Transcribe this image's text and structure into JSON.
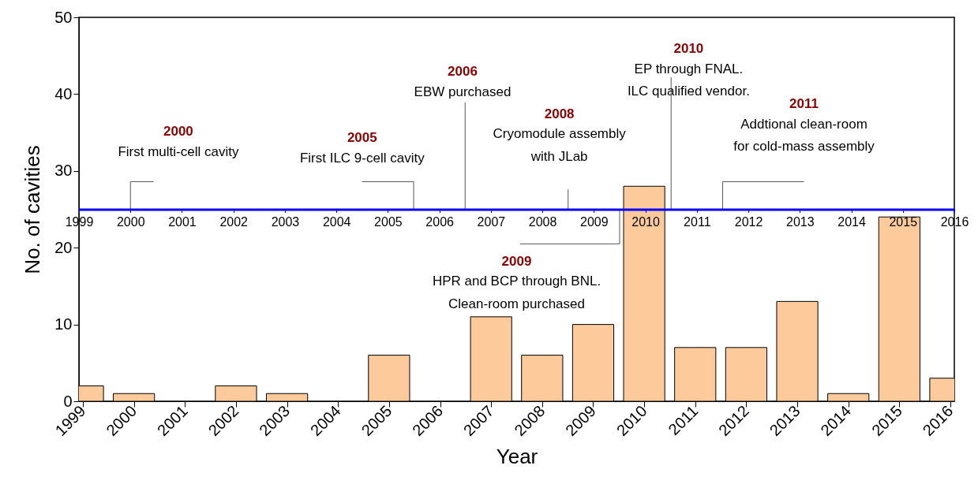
{
  "chart_data": {
    "type": "bar",
    "xlabel": "Year",
    "ylabel": "No. of cavities",
    "x": [
      1999,
      2000,
      2001,
      2002,
      2003,
      2004,
      2005,
      2006,
      2007,
      2008,
      2009,
      2010,
      2011,
      2012,
      2013,
      2014,
      2015,
      2016
    ],
    "values": [
      2,
      1,
      0,
      2,
      1,
      0,
      6,
      0,
      11,
      6,
      10,
      28,
      7,
      7,
      13,
      1,
      24,
      3
    ],
    "color": "#fdcb9b",
    "xlim": [
      1999,
      2016
    ],
    "xticks": [
      1999,
      2000,
      2001,
      2002,
      2003,
      2004,
      2005,
      2006,
      2007,
      2008,
      2009,
      2010,
      2011,
      2012,
      2013,
      2014,
      2015,
      2016
    ],
    "ylim": [
      0,
      50
    ],
    "yticks": [
      0,
      10,
      20,
      30,
      40,
      50
    ],
    "x2lim": [
      1999,
      2016
    ],
    "x2ticks": [
      1999,
      2000,
      2001,
      2002,
      2003,
      2004,
      2005,
      2006,
      2007,
      2008,
      2009,
      2010,
      2011,
      2012,
      2013,
      2014,
      2015,
      2016
    ],
    "annotations": [
      "2000",
      "First multi-cell cavity",
      "2005",
      "First ILC 9-cell cavity",
      "2006",
      "EBW purchased",
      "2008",
      "Cryomodule assembly",
      "with JLab",
      "2009",
      "HPR and BCP through BNL.",
      "Clean-room purchased",
      "2010",
      "EP through FNAL.",
      "ILC qualified vendor.",
      "2011",
      "Addtional clean-room",
      "for cold-mass assembly"
    ]
  }
}
